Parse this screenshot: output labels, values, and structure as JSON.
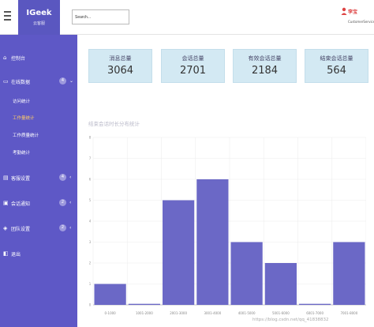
{
  "app": {
    "logo": "IGeek",
    "logo_sub": "云客服"
  },
  "search": {
    "value": "Search..."
  },
  "user": {
    "name": "李宝",
    "role": "CustomerService"
  },
  "sidebar": {
    "items": [
      {
        "label": "控制台",
        "icon": "home-icon"
      },
      {
        "label": "在线数据",
        "icon": "laptop-icon",
        "badge": "4"
      },
      {
        "label": "客服设置",
        "icon": "book-icon",
        "badge": "4"
      },
      {
        "label": "会话通知",
        "icon": "chat-icon",
        "badge": "2"
      },
      {
        "label": "团队设置",
        "icon": "team-icon",
        "badge": "2"
      },
      {
        "label": "退出",
        "icon": "logout-icon"
      }
    ],
    "subitems": [
      {
        "label": "访问统计",
        "active": false
      },
      {
        "label": "工作量统计",
        "active": true
      },
      {
        "label": "工作质量统计",
        "active": false
      },
      {
        "label": "考勤统计",
        "active": false
      }
    ]
  },
  "stats": [
    {
      "title": "消息总量",
      "value": "3064"
    },
    {
      "title": "会话总量",
      "value": "2701"
    },
    {
      "title": "有效会话总量",
      "value": "2184"
    },
    {
      "title": "结束会话总量",
      "value": "564"
    }
  ],
  "chart_data": {
    "type": "bar",
    "title": "结束会话时长分布统计",
    "categories": [
      "0-1000",
      "1001-2000",
      "2001-3000",
      "3001-4000",
      "4001-5000",
      "5001-6000",
      "6001-7000",
      "7001-8000"
    ],
    "values": [
      1,
      0.05,
      5,
      6,
      3,
      2,
      0.05,
      3
    ],
    "ylim": [
      0,
      8
    ],
    "yticks": [
      "0",
      "1",
      "2",
      "3",
      "4",
      "5",
      "6",
      "7",
      "8"
    ],
    "color": "#6b68c6"
  },
  "watermark": "https://blog.csdn.net/qq_41838832"
}
